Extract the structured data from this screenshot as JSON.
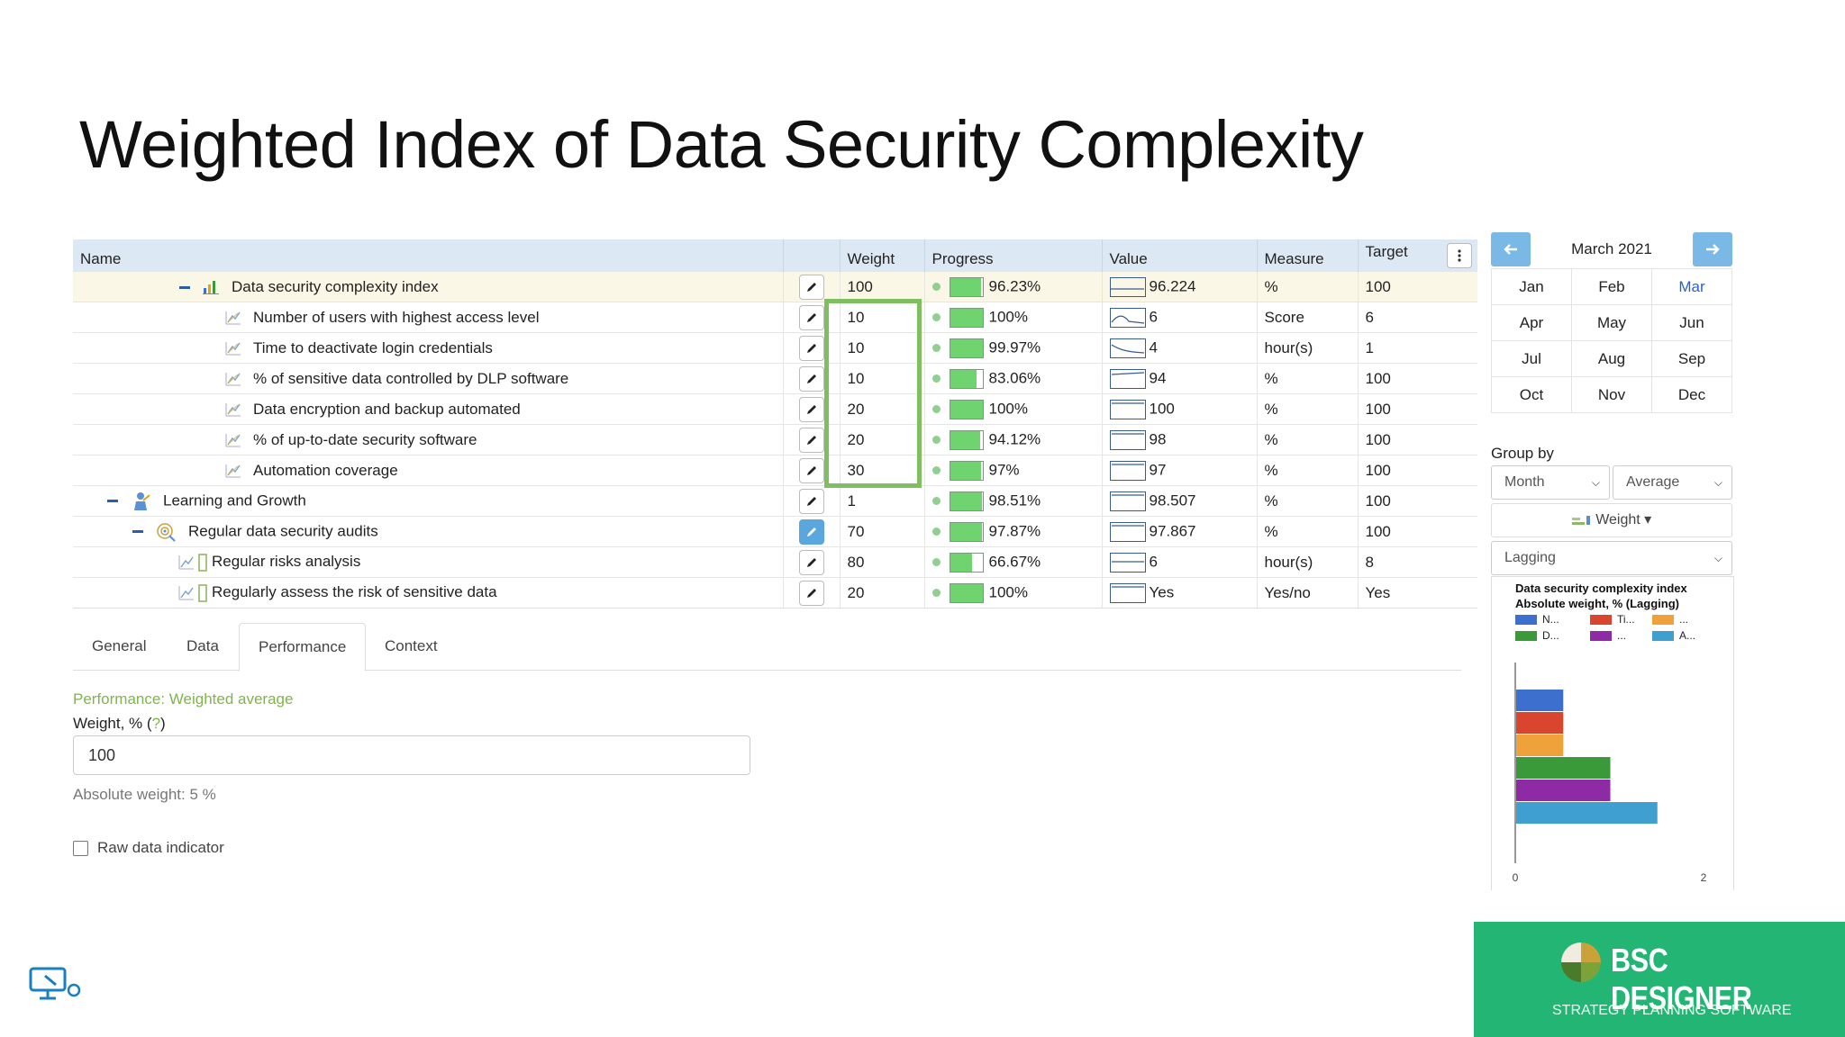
{
  "page_title": "Weighted Index of Data Security Complexity",
  "grid": {
    "headers": {
      "name": "Name",
      "weight": "Weight",
      "progress": "Progress",
      "value": "Value",
      "measure": "Measure",
      "target": "Target"
    },
    "rows": [
      {
        "name": "Data security complexity index",
        "weight": "100",
        "progress": "96.23%",
        "progress_fraction": 0.9623,
        "value": "96.224",
        "measure": "%",
        "target": "100"
      },
      {
        "name": "Number of users with highest access level",
        "weight": "10",
        "progress": "100%",
        "progress_fraction": 1.0,
        "value": "6",
        "measure": "Score",
        "target": "6"
      },
      {
        "name": "Time to deactivate login credentials",
        "weight": "10",
        "progress": "99.97%",
        "progress_fraction": 0.9997,
        "value": "4",
        "measure": "hour(s)",
        "target": "1"
      },
      {
        "name": "% of sensitive data controlled by DLP software",
        "weight": "10",
        "progress": "83.06%",
        "progress_fraction": 0.8306,
        "value": "94",
        "measure": "%",
        "target": "100"
      },
      {
        "name": "Data encryption and backup automated",
        "weight": "20",
        "progress": "100%",
        "progress_fraction": 1.0,
        "value": "100",
        "measure": "%",
        "target": "100"
      },
      {
        "name": "% of up-to-date security software",
        "weight": "20",
        "progress": "94.12%",
        "progress_fraction": 0.9412,
        "value": "98",
        "measure": "%",
        "target": "100"
      },
      {
        "name": "Automation coverage",
        "weight": "30",
        "progress": "97%",
        "progress_fraction": 0.97,
        "value": "97",
        "measure": "%",
        "target": "100"
      },
      {
        "name": "Learning and Growth",
        "weight": "1",
        "progress": "98.51%",
        "progress_fraction": 0.9851,
        "value": "98.507",
        "measure": "%",
        "target": "100"
      },
      {
        "name": "Regular data security audits",
        "weight": "70",
        "progress": "97.87%",
        "progress_fraction": 0.9787,
        "value": "97.867",
        "measure": "%",
        "target": "100"
      },
      {
        "name": "Regular risks analysis",
        "weight": "80",
        "progress": "66.67%",
        "progress_fraction": 0.6667,
        "value": "6",
        "measure": "hour(s)",
        "target": "8"
      },
      {
        "name": "Regularly assess the risk of sensitive data",
        "weight": "20",
        "progress": "100%",
        "progress_fraction": 1.0,
        "value": "Yes",
        "measure": "Yes/no",
        "target": "Yes"
      }
    ]
  },
  "tabs": [
    "General",
    "Data",
    "Performance",
    "Context"
  ],
  "active_tab": "Performance",
  "details": {
    "performance_label": "Performance: Weighted average",
    "weight_label": "Weight, % (",
    "weight_help": "?",
    "weight_label_end": ")",
    "weight_value": "100",
    "absolute_weight": "Absolute weight: 5 %",
    "raw_data_label": "Raw data indicator"
  },
  "calendar": {
    "title": "March 2021",
    "months": [
      "Jan",
      "Feb",
      "Mar",
      "Apr",
      "May",
      "Jun",
      "Jul",
      "Aug",
      "Sep",
      "Oct",
      "Nov",
      "Dec"
    ],
    "selected": "Mar"
  },
  "group_by": {
    "label": "Group by",
    "period": "Month",
    "aggregation": "Average",
    "weight_button": "Weight",
    "type": "Lagging"
  },
  "chart_data": {
    "type": "bar",
    "title": "Data security complexity index",
    "subtitle": "Absolute weight, % (Lagging)",
    "legend": [
      {
        "label": "N...",
        "color": "#3c6fce"
      },
      {
        "label": "Ti...",
        "color": "#d9452f"
      },
      {
        "label": "...",
        "color": "#f0a23a"
      },
      {
        "label": "D...",
        "color": "#3a9a3a"
      },
      {
        "label": "...",
        "color": "#8e2aa6"
      },
      {
        "label": "A...",
        "color": "#3f9fd0"
      }
    ],
    "values": [
      0.5,
      0.5,
      0.5,
      1.0,
      1.0,
      1.5
    ],
    "xlim": [
      0,
      2
    ],
    "ticks": [
      "0",
      "2"
    ]
  },
  "brand": {
    "name": "BSC DESIGNER",
    "tagline": "STRATEGY PLANNING SOFTWARE",
    "color": "#22b573"
  }
}
